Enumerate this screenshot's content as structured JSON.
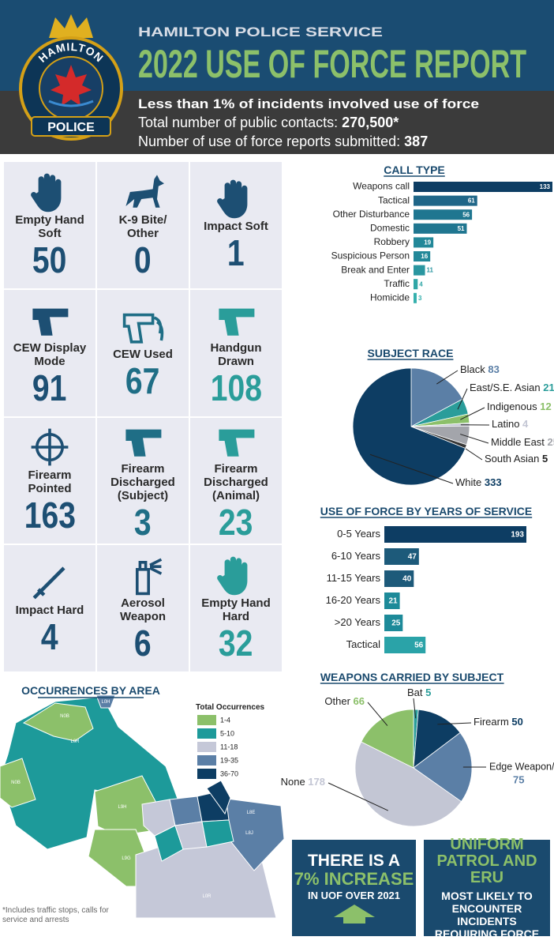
{
  "header": {
    "org": "HAMILTON POLICE SERVICE",
    "title": "2022 USE OF FORCE REPORT",
    "logo_top": "HAMILTON",
    "logo_bottom": "POLICE",
    "highlight": "Less than 1% of incidents involved use of force",
    "contacts_label": "Total number of public contacts:",
    "contacts_value": "270,500*",
    "reports_label": "Number of use of force reports submitted:",
    "reports_value": 387
  },
  "tiles": [
    {
      "label": "Empty Hand Soft",
      "value": 50,
      "color": "#1d4f73"
    },
    {
      "label": "K-9 Bite/ Other",
      "value": 0,
      "color": "#1d4f73"
    },
    {
      "label": "Impact Soft",
      "value": 1,
      "color": "#1d4f73"
    },
    {
      "label": "CEW Display Mode",
      "value": 91,
      "color": "#1d4f73"
    },
    {
      "label": "CEW Used",
      "value": 67,
      "color": "#1f6e86"
    },
    {
      "label": "Handgun Drawn",
      "value": 108,
      "color": "#2a9d9a"
    },
    {
      "label": "Firearm Pointed",
      "value": 163,
      "color": "#1d4f73"
    },
    {
      "label": "Firearm Discharged (Subject)",
      "value": 3,
      "color": "#1f6e86"
    },
    {
      "label": "Firearm Discharged (Animal)",
      "value": 23,
      "color": "#2a9d9a"
    },
    {
      "label": "Impact Hard",
      "value": 4,
      "color": "#1d4f73"
    },
    {
      "label": "Aerosol Weapon",
      "value": 6,
      "color": "#1d4f73"
    },
    {
      "label": "Empty Hand Hard",
      "value": 32,
      "color": "#2a9d9a"
    }
  ],
  "chart_data": [
    {
      "type": "hbar",
      "title": "CALL TYPE",
      "categories": [
        "Weapons call",
        "Tactical",
        "Other Disturbance",
        "Domestic",
        "Robbery",
        "Suspicious Person",
        "Break and Enter",
        "Traffic",
        "Homicide"
      ],
      "values": [
        133,
        61,
        56,
        51,
        19,
        16,
        11,
        4,
        3
      ],
      "colors": [
        "#0d3d63",
        "#1f6688",
        "#1f7690",
        "#1f7690",
        "#238899",
        "#238899",
        "#2a96a0",
        "#2fa6a6",
        "#35b0ad"
      ]
    },
    {
      "type": "pie",
      "title": "SUBJECT RACE",
      "categories": [
        "Black",
        "East/S.E. Asian",
        "Indigenous",
        "Latino",
        "Middle East",
        "South Asian",
        "White"
      ],
      "values": [
        83,
        21,
        12,
        4,
        25,
        5,
        333
      ],
      "colors": [
        "#5b7fa6",
        "#2a9d9a",
        "#8cc06a",
        "#c3c6d4",
        "#a3a5ab",
        "#3a3a3a",
        "#0d3d63"
      ]
    },
    {
      "type": "hbar",
      "title": "USE OF FORCE BY YEARS OF SERVICE",
      "categories": [
        "0-5 Years",
        "6-10 Years",
        "11-15 Years",
        "16-20 Years",
        ">20 Years",
        "Tactical"
      ],
      "values": [
        193,
        47,
        40,
        21,
        25,
        56
      ],
      "colors": [
        "#0d3d63",
        "#1d5a7a",
        "#1d5a7a",
        "#1d8a99",
        "#1d8a99",
        "#2aa3a8"
      ]
    },
    {
      "type": "pie",
      "title": "WEAPONS CARRIED BY SUBJECT",
      "categories": [
        "Bat",
        "Firearm",
        "Edge Weapon/Knife",
        "None",
        "Other"
      ],
      "values": [
        5,
        50,
        75,
        178,
        66
      ],
      "colors": [
        "#2a9d9a",
        "#0d3d63",
        "#5b7fa6",
        "#c3c6d4",
        "#8cc06a"
      ]
    }
  ],
  "map": {
    "title": "OCCURRENCES BY AREA",
    "legend_title": "Total Occurrences",
    "legend": [
      {
        "label": "1-4",
        "color": "#8cc06a"
      },
      {
        "label": "5-10",
        "color": "#1d9a9a"
      },
      {
        "label": "11-18",
        "color": "#c5c8d8"
      },
      {
        "label": "19-35",
        "color": "#5b7fa6"
      },
      {
        "label": "36-70",
        "color": "#0d3d63"
      }
    ],
    "areas": [
      "N0B",
      "N0B",
      "L0R",
      "L9H",
      "L9G",
      "L0R",
      "L8J",
      "L8E",
      "L0H"
    ],
    "footnote": "*Includes traffic stops, calls for service and arrests"
  },
  "callouts": [
    {
      "line1": "THERE IS A",
      "line2": "7% INCREASE",
      "line3": "IN UOF OVER 2021"
    },
    {
      "line1": "UNIFORM PATROL AND ERU",
      "line2": "MOST LIKELY TO ENCOUNTER INCIDENTS REQUIRING FORCE"
    }
  ]
}
